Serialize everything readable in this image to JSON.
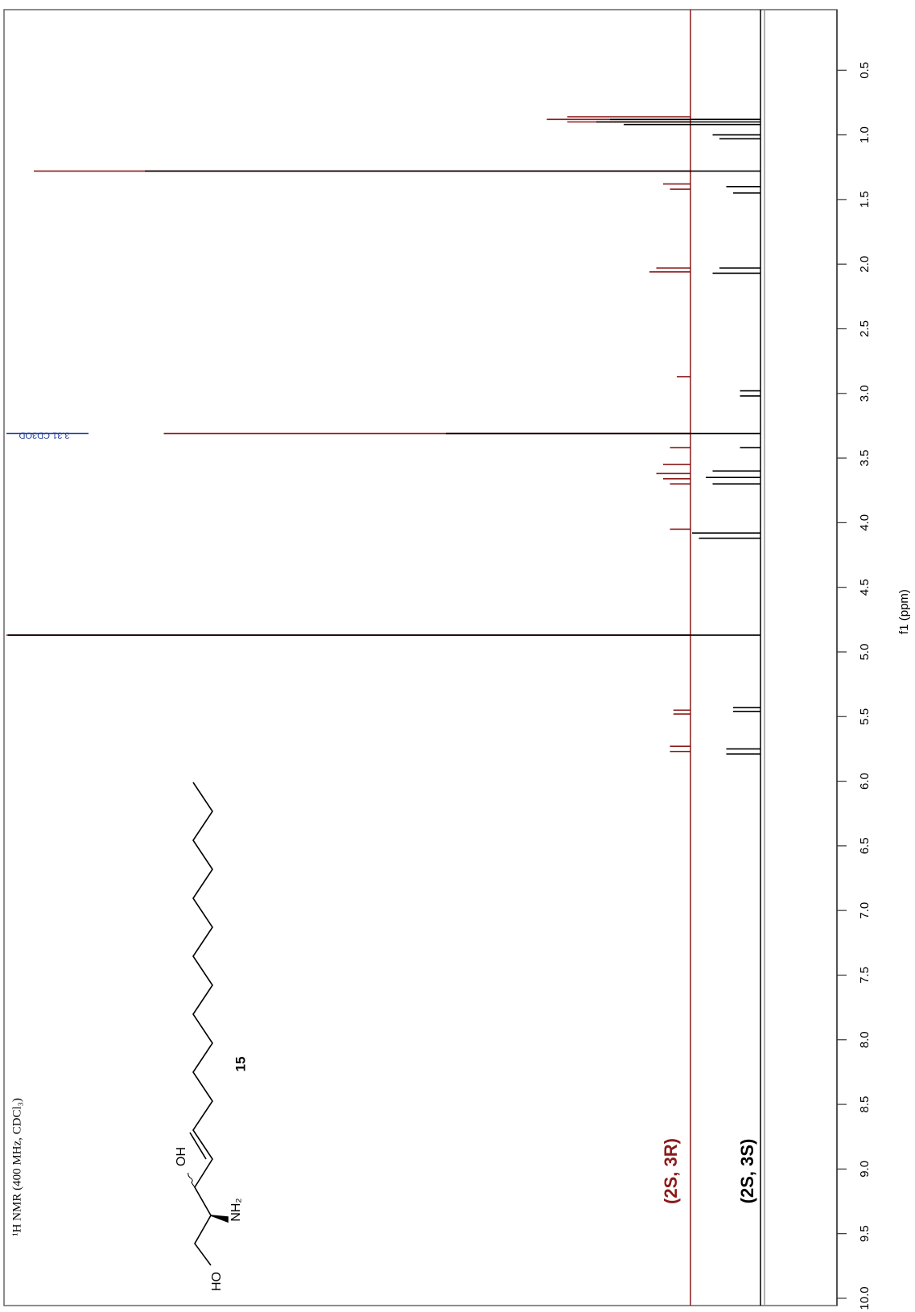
{
  "chart_data": {
    "type": "spectrum",
    "title": "¹H NMR (400 MHz, CDCl₃)",
    "x_label": "f1 (ppm)",
    "xlim": [
      0.05,
      10.05
    ],
    "xticks": [
      0.5,
      {
        "value": 1,
        "label": "1.0"
      },
      1.5,
      {
        "value": 2,
        "label": "2.0"
      },
      2.5,
      {
        "value": 3,
        "label": "3.0"
      },
      3.5,
      {
        "value": 4,
        "label": "4.0"
      },
      4.5,
      {
        "value": 5,
        "label": "5.0"
      },
      5.5,
      {
        "value": 6,
        "label": "6.0"
      },
      6.5,
      {
        "value": 7,
        "label": "7.0"
      },
      7.5,
      {
        "value": 8,
        "label": "8.0"
      },
      8.5,
      {
        "value": 9,
        "label": "9.0"
      },
      9.5,
      {
        "value": 10,
        "label": "10.0"
      }
    ],
    "ylim": [
      0,
      110
    ],
    "series": [
      {
        "name": "(2S, 3R)",
        "color": "#8b1a1a",
        "x": [
          0.86,
          0.88,
          0.9,
          1.28,
          1.38,
          1.42,
          2.03,
          2.06,
          2.87,
          3.31,
          3.42,
          3.55,
          3.62,
          3.66,
          3.7,
          4.05,
          4.87,
          5.45,
          5.48,
          5.73,
          5.77
        ],
        "values": [
          18,
          21,
          18,
          96,
          4,
          3,
          5,
          6,
          2,
          77,
          3,
          4,
          5,
          4,
          3,
          3,
          100,
          2.5,
          2.5,
          3,
          3
        ]
      },
      {
        "name": "(2S, 3S)",
        "color": "#000000",
        "x": [
          0.88,
          0.9,
          0.92,
          1.0,
          1.03,
          1.28,
          1.4,
          1.45,
          2.03,
          2.07,
          2.98,
          3.02,
          3.31,
          3.42,
          3.6,
          3.65,
          3.7,
          4.08,
          4.12,
          4.87,
          5.43,
          5.46,
          5.75,
          5.79
        ],
        "values": [
          22,
          24,
          20,
          7,
          6,
          90,
          5,
          4,
          6,
          7,
          3,
          3,
          46,
          3,
          7,
          8,
          7,
          10,
          9,
          110,
          4,
          4,
          5,
          5
        ]
      }
    ],
    "annotations": [
      {
        "text": "3.31 CD3OD",
        "x": 3.31
      }
    ]
  },
  "structure": {
    "compound": "15",
    "labels": [
      "HO",
      "OH",
      "NH₂"
    ]
  }
}
